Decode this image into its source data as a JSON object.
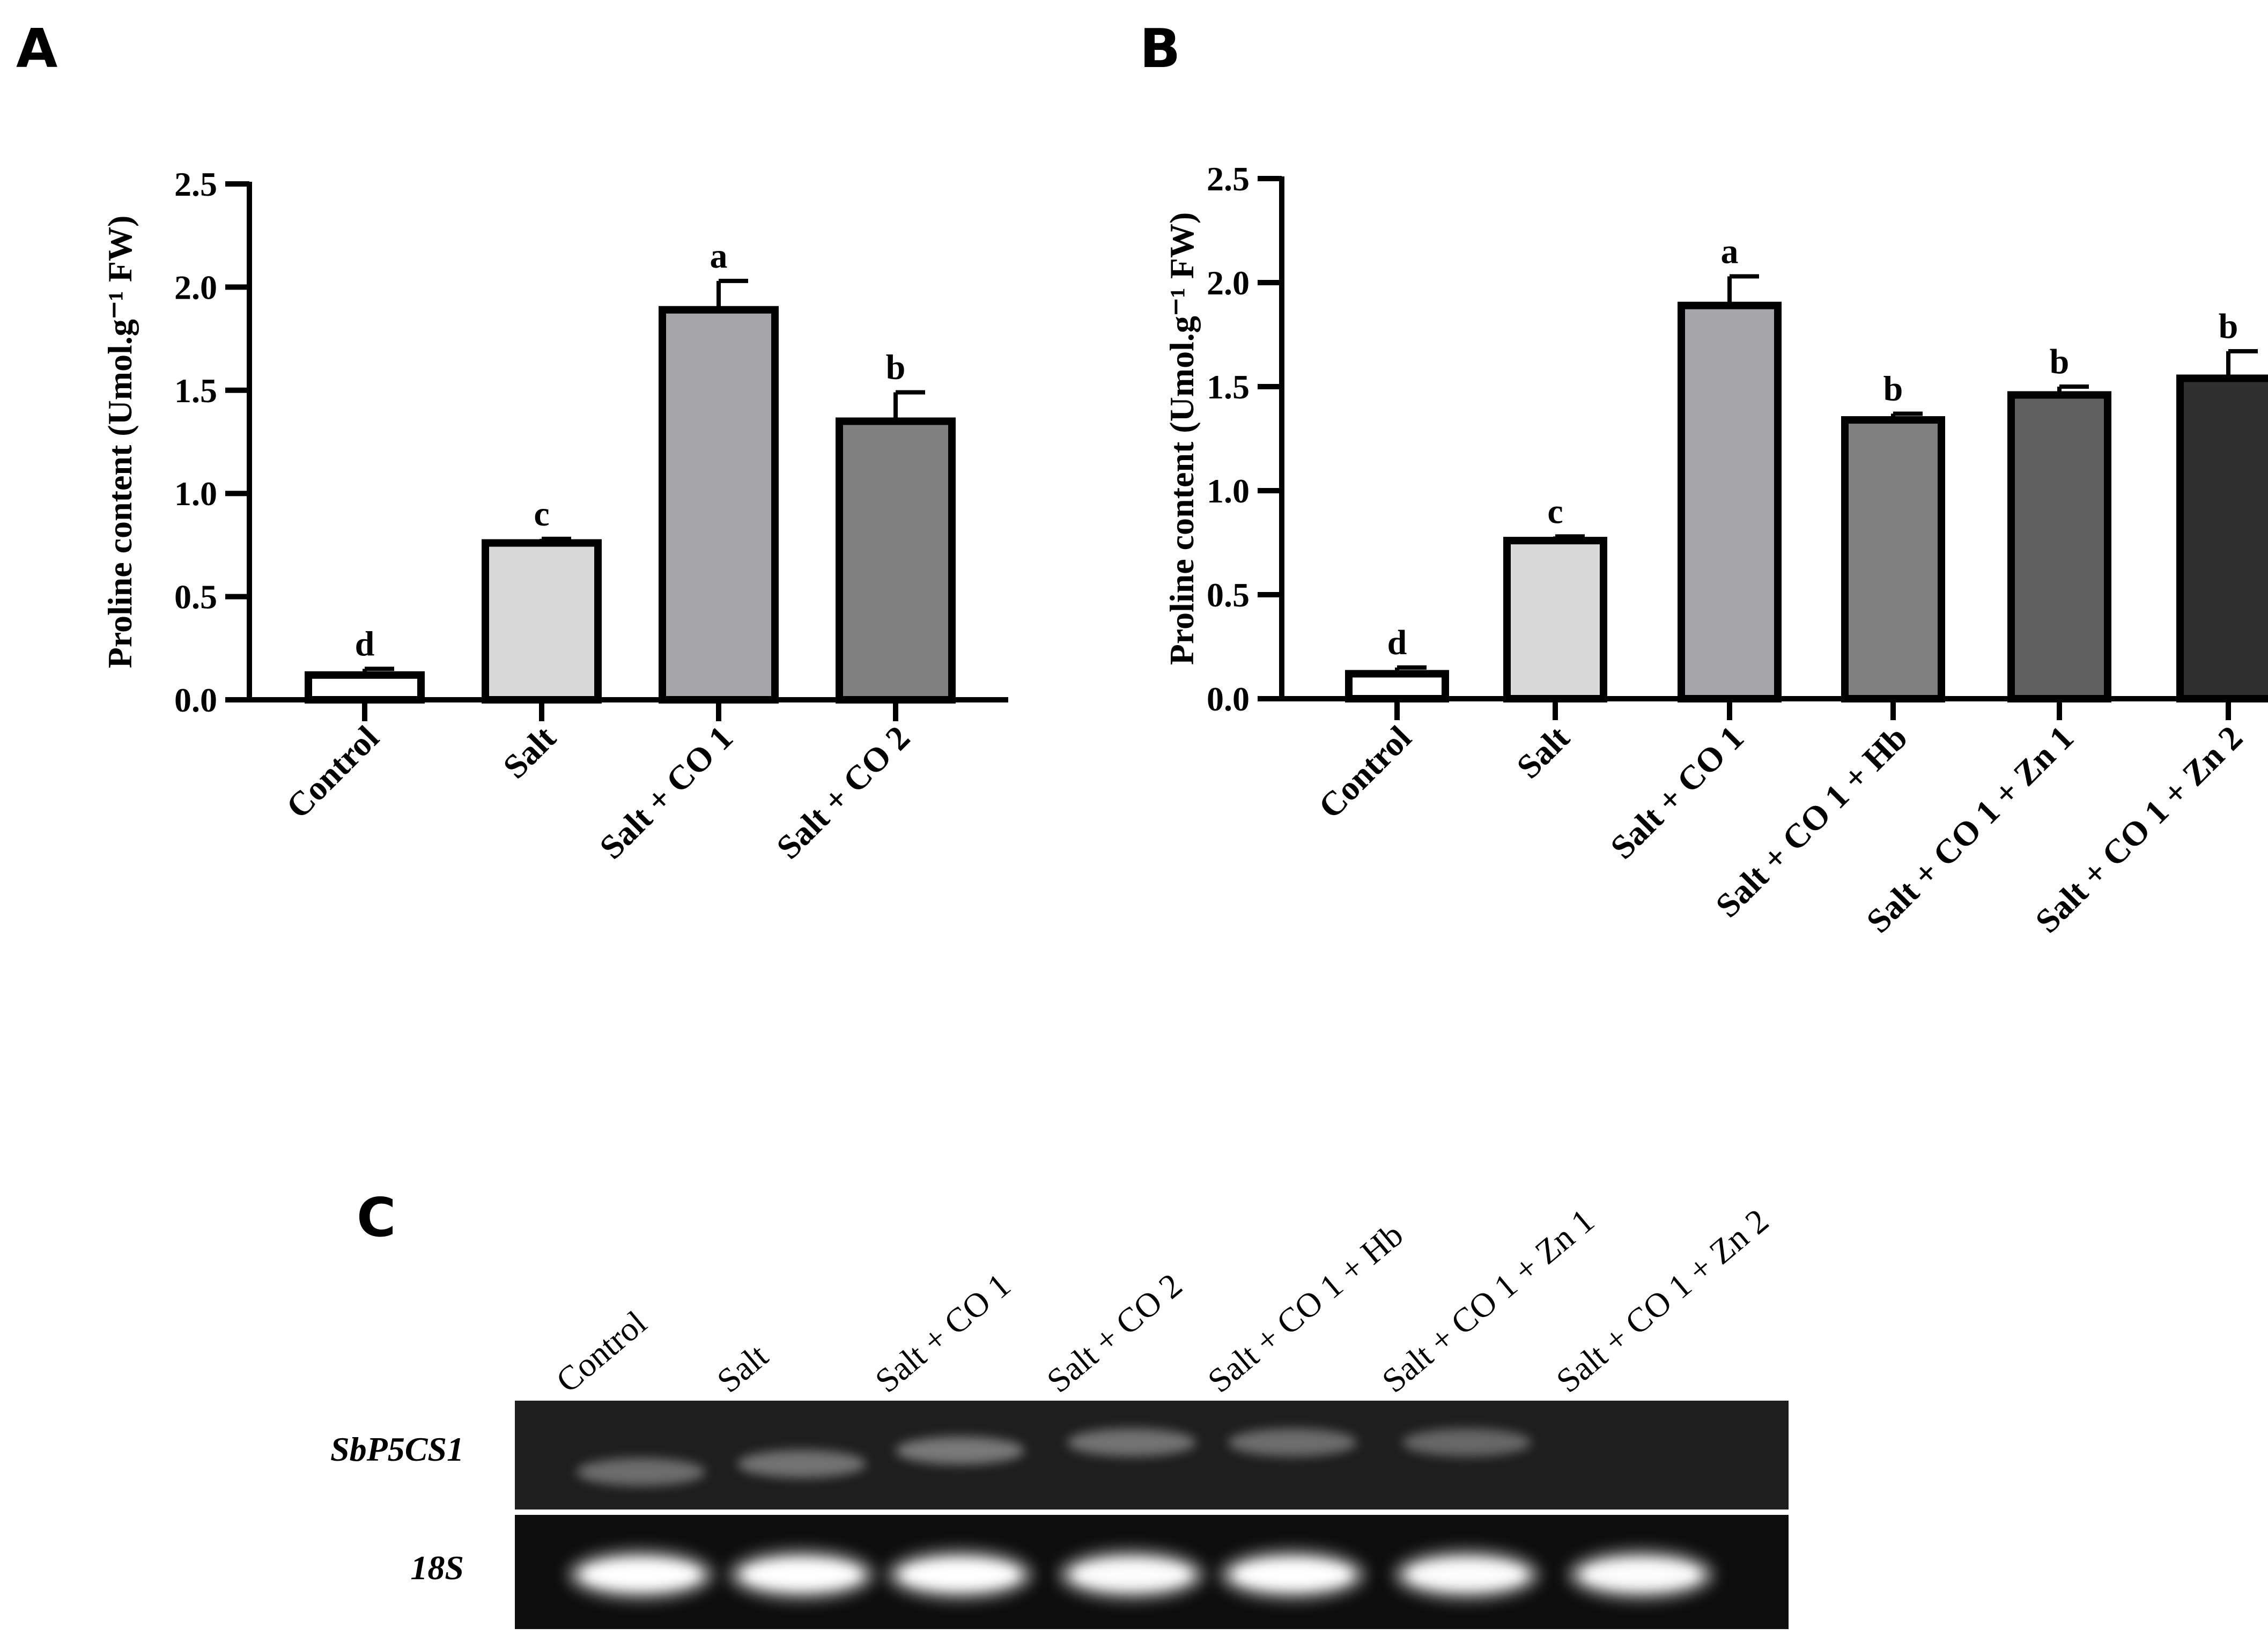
{
  "chart_data": [
    {
      "panel": "A",
      "type": "bar",
      "ylabel": "Proline content (Umol.g⁻¹ FW)",
      "ylim": [
        0,
        2.5
      ],
      "yticks": [
        "0.0",
        "0.5",
        "1.0",
        "1.5",
        "2.0",
        "2.5"
      ],
      "categories": [
        "Control",
        "Salt",
        "Salt  + CO 1",
        "Salt  + CO 2"
      ],
      "values": [
        0.12,
        0.76,
        1.89,
        1.35
      ],
      "errors": [
        0.03,
        0.02,
        0.14,
        0.14
      ],
      "significance": [
        "d",
        "c",
        "a",
        "b"
      ],
      "colors": [
        "#ffffff",
        "#d9d9d9",
        "#a6a5aa",
        "#808080"
      ]
    },
    {
      "panel": "B",
      "type": "bar",
      "ylabel": "Proline content (Umol.g⁻¹ FW)",
      "ylim": [
        0,
        2.5
      ],
      "yticks": [
        "0.0",
        "0.5",
        "1.0",
        "1.5",
        "2.0",
        "2.5"
      ],
      "categories": [
        "Control",
        "Salt",
        "Salt  + CO 1",
        "Salt  + CO 1 + Hb",
        "Salt  + CO 1 + Zn 1",
        "Salt  + CO 1 + Zn 2"
      ],
      "values": [
        0.12,
        0.76,
        1.89,
        1.34,
        1.46,
        1.54
      ],
      "errors": [
        0.03,
        0.02,
        0.14,
        0.03,
        0.04,
        0.13
      ],
      "significance": [
        "d",
        "c",
        "a",
        "b",
        "b",
        "b"
      ],
      "colors": [
        "#ffffff",
        "#d9d9d9",
        "#a6a5aa",
        "#808080",
        "#606060",
        "#303030"
      ]
    }
  ],
  "gel": {
    "panel": "C",
    "lanes": [
      "Control",
      "Salt",
      "Salt + CO 1",
      "Salt + CO 2",
      "Salt + CO 1 + Hb",
      "Salt + CO 1 + Zn 1",
      "Salt + CO 1 + Zn 2"
    ],
    "rows": [
      {
        "label": "SbP5CS1",
        "intensities": [
          0.45,
          0.5,
          0.55,
          0.5,
          0.45,
          0.4,
          0.0
        ]
      },
      {
        "label": "18S",
        "intensities": [
          1.0,
          1.0,
          1.0,
          0.95,
          1.0,
          0.95,
          0.95
        ]
      }
    ]
  }
}
